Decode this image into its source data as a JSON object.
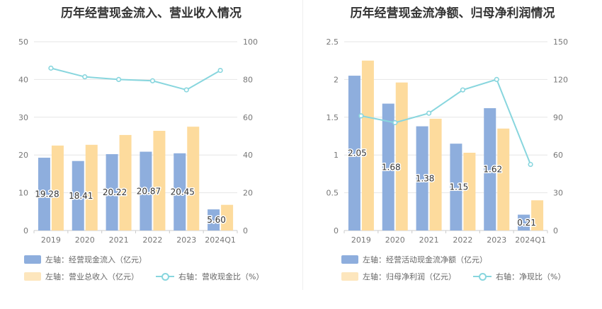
{
  "colors": {
    "blue": "#8eaedd",
    "orange": "#fddb9d",
    "line": "#88d6de",
    "grid": "#e6e6e6"
  },
  "chart_data": [
    {
      "type": "bar",
      "title": "历年经营现金流入、营业收入情况",
      "categories": [
        "2019",
        "2020",
        "2021",
        "2022",
        "2023",
        "2024Q1"
      ],
      "left_axis": {
        "min": 0,
        "max": 50,
        "ticks": [
          "0",
          "10",
          "20",
          "30",
          "40",
          "50"
        ]
      },
      "right_axis": {
        "min": 0,
        "max": 100,
        "ticks": [
          "0",
          "20",
          "40",
          "60",
          "80",
          "100"
        ]
      },
      "series": [
        {
          "name": "左轴：经营现金流入（亿元）",
          "type": "bar",
          "axis": "left",
          "color": "blue",
          "values": [
            19.28,
            18.41,
            20.22,
            20.87,
            20.45,
            5.6
          ],
          "labels": [
            "19.28",
            "18.41",
            "20.22",
            "20.87",
            "20.45",
            "5.60"
          ]
        },
        {
          "name": "左轴：营业总收入（亿元）",
          "type": "bar",
          "axis": "left",
          "color": "orange",
          "values": [
            22.5,
            22.7,
            25.3,
            26.4,
            27.5,
            6.8
          ]
        },
        {
          "name": "右轴：营收现金比（%）",
          "type": "line",
          "axis": "right",
          "color": "line",
          "values": [
            86.0,
            81.4,
            80.0,
            79.3,
            74.5,
            84.8
          ]
        }
      ]
    },
    {
      "type": "bar",
      "title": "历年经营现金流净额、归母净利润情况",
      "categories": [
        "2019",
        "2020",
        "2021",
        "2022",
        "2023",
        "2024Q1"
      ],
      "left_axis": {
        "min": 0,
        "max": 2.5,
        "ticks": [
          "0",
          "0.5",
          "1",
          "1.5",
          "2",
          "2.5"
        ]
      },
      "right_axis": {
        "min": 0,
        "max": 150,
        "ticks": [
          "0",
          "30",
          "60",
          "90",
          "120",
          "150"
        ]
      },
      "series": [
        {
          "name": "左轴：经营活动现金流净额（亿元）",
          "type": "bar",
          "axis": "left",
          "color": "blue",
          "values": [
            2.05,
            1.68,
            1.38,
            1.15,
            1.62,
            0.21
          ],
          "labels": [
            "2.05",
            "1.68",
            "1.38",
            "1.15",
            "1.62",
            "0.21"
          ]
        },
        {
          "name": "左轴：归母净利润（亿元）",
          "type": "bar",
          "axis": "left",
          "color": "orange",
          "values": [
            2.25,
            1.96,
            1.48,
            1.03,
            1.35,
            0.4
          ]
        },
        {
          "name": "右轴：净现比（%）",
          "type": "line",
          "axis": "right",
          "color": "line",
          "values": [
            91.1,
            85.7,
            93.2,
            111.7,
            120.0,
            52.5
          ]
        }
      ]
    }
  ]
}
